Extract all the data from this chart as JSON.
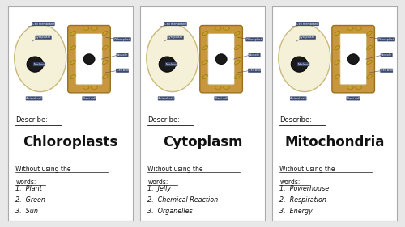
{
  "cards": [
    {
      "title": "Chloroplasts",
      "words": [
        "1.  Plant",
        "2.  Green",
        "3.  Sun"
      ]
    },
    {
      "title": "Cytoplasm",
      "words": [
        "1.  Jelly",
        "2.  Chemical Reaction",
        "3.  Organelles"
      ]
    },
    {
      "title": "Mitochondria",
      "words": [
        "1.  Powerhouse",
        "2.  Respiration",
        "3.  Energy"
      ]
    }
  ],
  "outer_bg": "#e8e8e8",
  "card_bg": "#ffffff",
  "card_border": "#aaaaaa",
  "animal_cell_fill": "#f5f0d8",
  "animal_cell_edge": "#c8b87a",
  "plant_outer_fill": "#c8963c",
  "plant_outer_edge": "#9a7020",
  "plant_inner_fill": "#ffffff",
  "plant_inner_edge": "#c8b87a",
  "nucleus_fill": "#1a1a1a",
  "nucleus_edge": "#000000",
  "chloroplast_fill": "#c8a030",
  "chloroplast_edge": "#8a6a00",
  "label_bg": "#3a4a70",
  "label_fg": "#ffffff",
  "line_color": "#555555",
  "describe_text": "Describe:",
  "without_line1": "Without using the",
  "without_line2": "words:"
}
